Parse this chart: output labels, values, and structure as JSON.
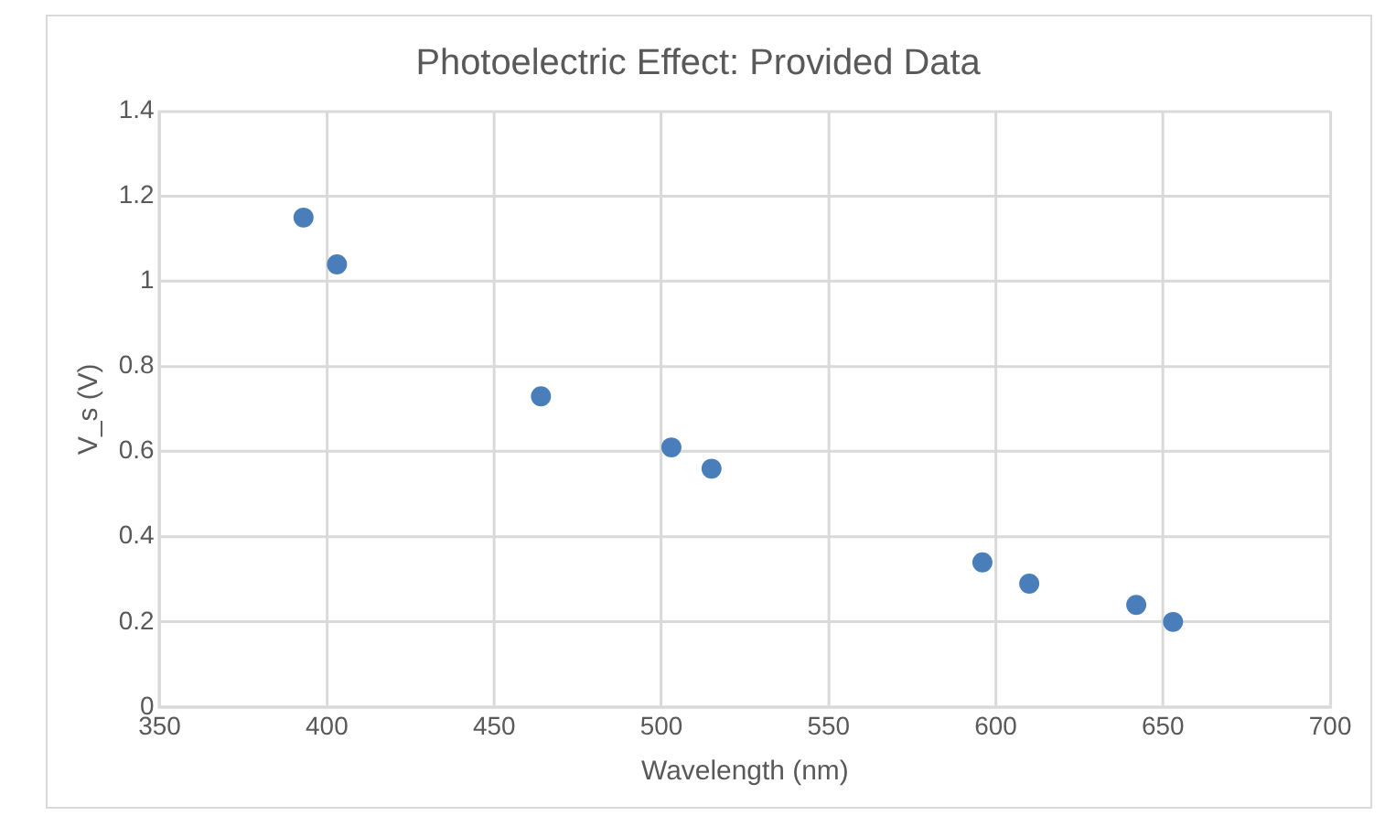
{
  "chart_data": {
    "type": "scatter",
    "title": "Photoelectric Effect: Provided Data",
    "xlabel": "Wavelength (nm)",
    "ylabel": "V_s (V)",
    "series": [
      {
        "color": "#4a7ebb",
        "x": [
          393,
          403,
          464,
          503,
          515,
          596,
          610,
          642,
          653
        ],
        "values": [
          1.15,
          1.04,
          0.73,
          0.61,
          0.56,
          0.34,
          0.29,
          0.24,
          0.2
        ]
      }
    ],
    "xlim": [
      350,
      700
    ],
    "xticks": [
      350,
      400,
      450,
      500,
      550,
      600,
      650,
      700
    ],
    "ylim": [
      0,
      1.4
    ],
    "yticks": [
      0,
      0.2,
      0.4,
      0.6,
      0.8,
      1,
      1.2,
      1.4
    ],
    "grid": true,
    "legend": false,
    "marker": "circle"
  }
}
